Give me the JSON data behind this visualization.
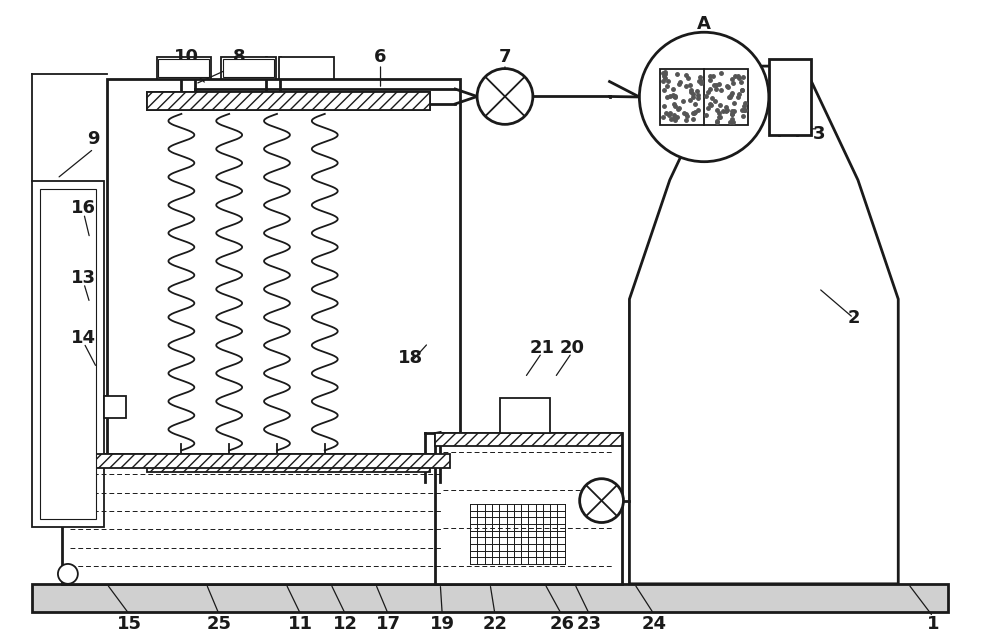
{
  "bg_color": "#ffffff",
  "lc": "#1a1a1a",
  "lw": 1.3,
  "lw2": 2.0,
  "lw3": 2.5
}
